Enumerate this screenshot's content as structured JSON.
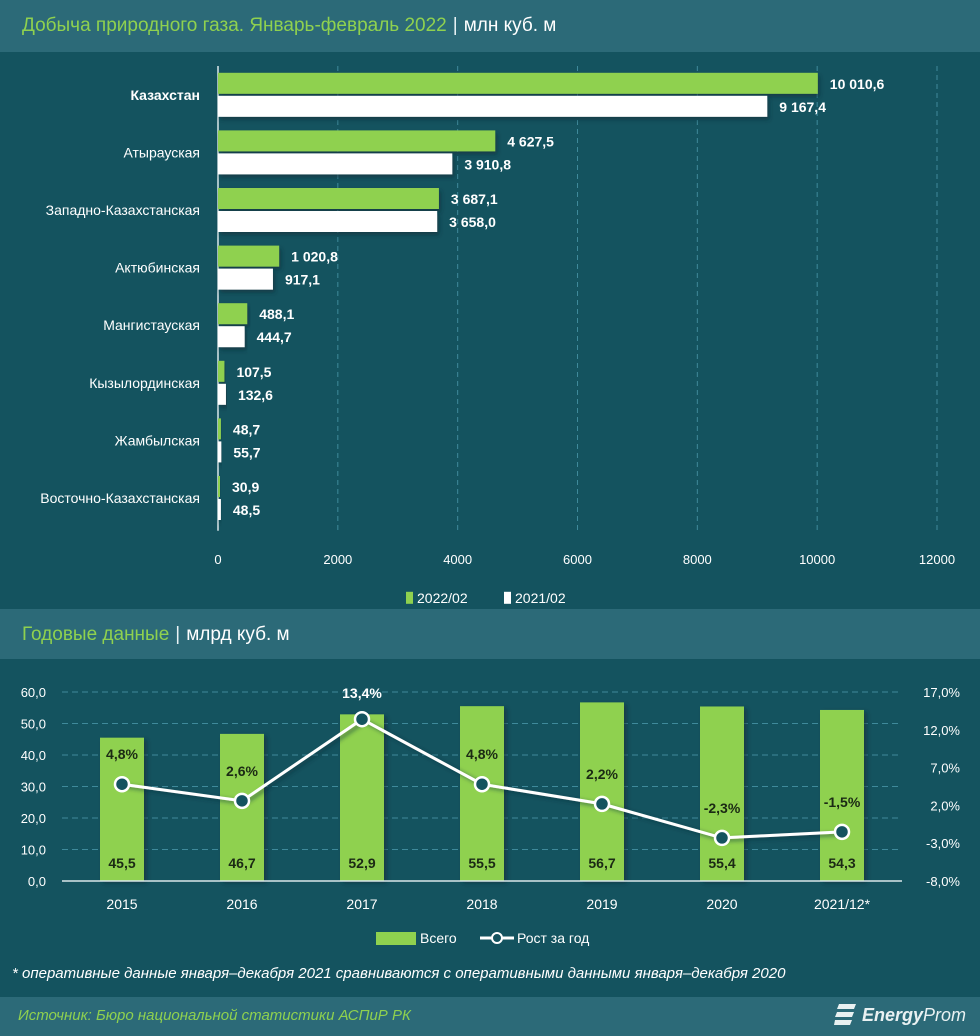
{
  "header1": {
    "title": "Добыча природного газа. Январь-февраль 2022",
    "separator": "|",
    "unit": "млн куб. м"
  },
  "header2": {
    "title": "Годовые данные",
    "separator": "|",
    "unit": "млрд куб. м"
  },
  "colors": {
    "green": "#8fd14f",
    "white": "#ffffff",
    "background": "#14535f",
    "band": "#2c6a78"
  },
  "chart_data": [
    {
      "type": "bar",
      "orientation": "horizontal",
      "title": "Добыча природного газа. Январь-февраль 2022",
      "unit": "млн куб. м",
      "categories": [
        "Казахстан",
        "Атырауская",
        "Западно-Казахстанская",
        "Актюбинская",
        "Мангистауская",
        "Кызылординская",
        "Жамбылская",
        "Восточно-Казахстанская"
      ],
      "series": [
        {
          "name": "2022/02",
          "color": "#8fd14f",
          "values": [
            10010.6,
            4627.5,
            3687.1,
            1020.8,
            488.1,
            107.5,
            48.7,
            30.9
          ],
          "labels": [
            "10 010,6",
            "4 627,5",
            "3 687,1",
            "1 020,8",
            "488,1",
            "107,5",
            "48,7",
            "30,9"
          ]
        },
        {
          "name": "2021/02",
          "color": "#ffffff",
          "values": [
            9167.4,
            3910.8,
            3658.0,
            917.1,
            444.7,
            132.6,
            55.7,
            48.5
          ],
          "labels": [
            "9 167,4",
            "3 910,8",
            "3 658,0",
            "917,1",
            "444,7",
            "132,6",
            "55,7",
            "48,5"
          ]
        }
      ],
      "xlim": [
        0,
        12000
      ],
      "xticks": [
        "0",
        "2000",
        "4000",
        "6000",
        "8000",
        "10000",
        "12000"
      ],
      "grid": "vertical dashed",
      "legend": "bottom"
    },
    {
      "type": "bar+line",
      "title": "Годовые данные",
      "unit": "млрд куб. м",
      "categories": [
        "2015",
        "2016",
        "2017",
        "2018",
        "2019",
        "2020",
        "2021/12*"
      ],
      "series": [
        {
          "name": "Всего",
          "type": "bar",
          "axis": "left",
          "color": "#8fd14f",
          "values": [
            45.5,
            46.7,
            52.9,
            55.5,
            56.7,
            55.4,
            54.3
          ],
          "labels": [
            "45,5",
            "46,7",
            "52,9",
            "55,5",
            "56,7",
            "55,4",
            "54,3"
          ]
        },
        {
          "name": "Рост за год",
          "type": "line",
          "axis": "right",
          "color": "#ffffff",
          "values": [
            4.8,
            2.6,
            13.4,
            4.8,
            2.2,
            -2.3,
            -1.5
          ],
          "labels": [
            "4,8%",
            "2,6%",
            "13,4%",
            "4,8%",
            "2,2%",
            "-2,3%",
            "-1,5%"
          ]
        }
      ],
      "ylim_left": [
        0,
        60
      ],
      "yticks_left": [
        "0,0",
        "10,0",
        "20,0",
        "30,0",
        "40,0",
        "50,0",
        "60,0"
      ],
      "ylim_right": [
        -8,
        17
      ],
      "yticks_right": [
        "-8,0%",
        "-3,0%",
        "2,0%",
        "7,0%",
        "12,0%",
        "17,0%"
      ],
      "grid": "horizontal dashed",
      "legend": "bottom"
    }
  ],
  "footnote": "* оперативные данные января–декабря 2021 сравниваются с оперативными данными января–декабря 2020",
  "footer": {
    "source": "Источник: Бюро национальной статистики АСПиР РК",
    "logo_bold": "Energy",
    "logo_light": "Prom"
  }
}
